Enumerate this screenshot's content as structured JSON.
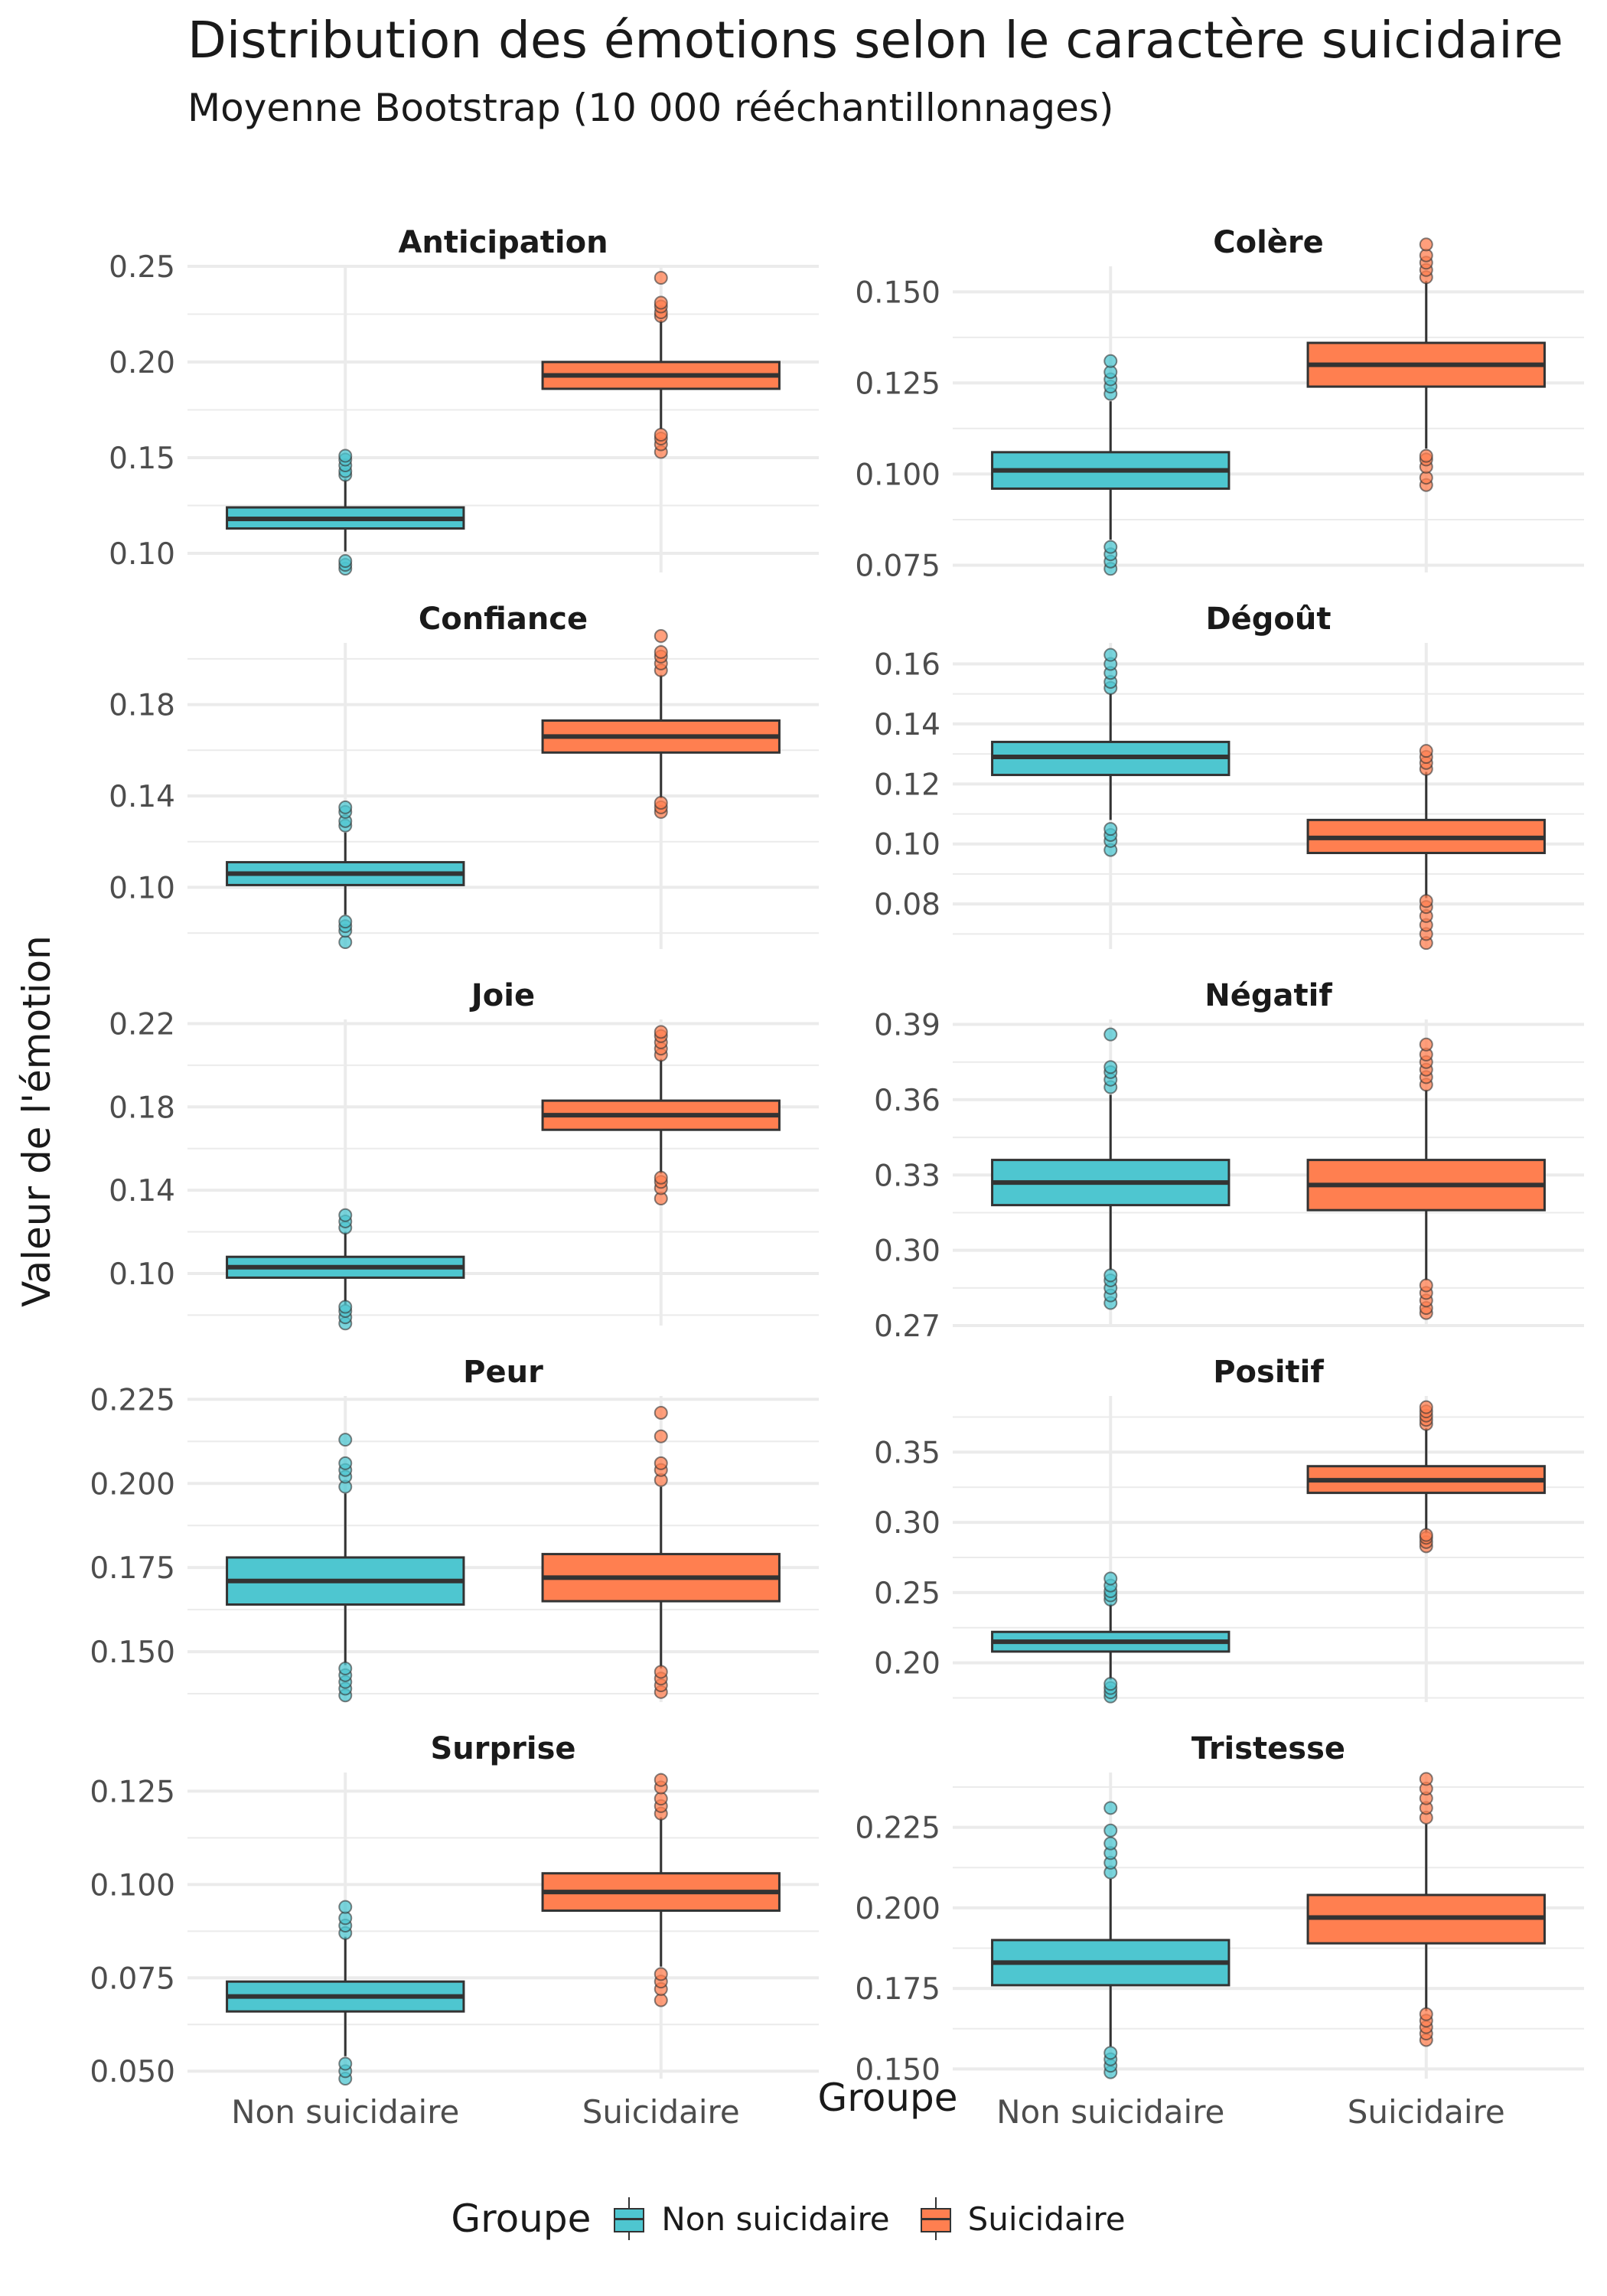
{
  "title": "Distribution des émotions selon le caractère suicidaire",
  "subtitle": "Moyenne Bootstrap (10 000 rééchantillonnages)",
  "ylabel": "Valeur de l'émotion",
  "xlabel": "Groupe",
  "legend": {
    "title": "Groupe",
    "items": [
      {
        "label": "Non suicidaire",
        "color": "#4EC6D0"
      },
      {
        "label": "Suicidaire",
        "color": "#FF7F50"
      }
    ]
  },
  "colors": {
    "non_suicidaire": "#4EC6D0",
    "suicidaire": "#FF7F50",
    "outline": "#333333",
    "grid": "#EBEBEB"
  },
  "chart_data": {
    "type": "box",
    "categories": [
      "Non suicidaire",
      "Suicidaire"
    ],
    "grid": true,
    "legend_position": "bottom",
    "panels": [
      {
        "name": "Anticipation",
        "ylim": [
          0.09,
          0.25
        ],
        "yticks": [
          0.1,
          0.15,
          0.2,
          0.25
        ],
        "tick_labels": [
          "0.10",
          "0.15",
          "0.20",
          "0.25"
        ],
        "boxes": [
          {
            "group": "Non suicidaire",
            "min": 0.101,
            "q1": 0.113,
            "median": 0.118,
            "q3": 0.124,
            "max": 0.139,
            "outliers": [
              0.092,
              0.094,
              0.096,
              0.141,
              0.143,
              0.146,
              0.149,
              0.151
            ]
          },
          {
            "group": "Suicidaire",
            "min": 0.165,
            "q1": 0.186,
            "median": 0.193,
            "q3": 0.2,
            "max": 0.222,
            "outliers": [
              0.153,
              0.157,
              0.16,
              0.162,
              0.224,
              0.226,
              0.229,
              0.231,
              0.244
            ]
          }
        ]
      },
      {
        "name": "Colère",
        "ylim": [
          0.073,
          0.157
        ],
        "yticks": [
          0.075,
          0.1,
          0.125,
          0.15
        ],
        "tick_labels": [
          "0.075",
          "0.100",
          "0.125",
          "0.150"
        ],
        "boxes": [
          {
            "group": "Non suicidaire",
            "min": 0.082,
            "q1": 0.096,
            "median": 0.101,
            "q3": 0.106,
            "max": 0.12,
            "outliers": [
              0.074,
              0.076,
              0.078,
              0.08,
              0.122,
              0.124,
              0.126,
              0.128,
              0.131
            ]
          },
          {
            "group": "Suicidaire",
            "min": 0.107,
            "q1": 0.124,
            "median": 0.13,
            "q3": 0.136,
            "max": 0.153,
            "outliers": [
              0.097,
              0.099,
              0.102,
              0.104,
              0.105,
              0.154,
              0.156,
              0.158,
              0.16,
              0.163
            ]
          }
        ]
      },
      {
        "name": "Confiance",
        "ylim": [
          0.073,
          0.207
        ],
        "yticks": [
          0.1,
          0.14,
          0.18
        ],
        "tick_labels": [
          "0.10",
          "0.14",
          "0.18"
        ],
        "boxes": [
          {
            "group": "Non suicidaire",
            "min": 0.088,
            "q1": 0.101,
            "median": 0.106,
            "q3": 0.111,
            "max": 0.124,
            "outliers": [
              0.076,
              0.081,
              0.083,
              0.085,
              0.127,
              0.129,
              0.133,
              0.135
            ]
          },
          {
            "group": "Suicidaire",
            "min": 0.139,
            "q1": 0.159,
            "median": 0.166,
            "q3": 0.173,
            "max": 0.193,
            "outliers": [
              0.133,
              0.135,
              0.137,
              0.195,
              0.198,
              0.201,
              0.203,
              0.21
            ]
          }
        ]
      },
      {
        "name": "Dégoût",
        "ylim": [
          0.065,
          0.167
        ],
        "yticks": [
          0.08,
          0.1,
          0.12,
          0.14,
          0.16
        ],
        "tick_labels": [
          "0.08",
          "0.10",
          "0.12",
          "0.14",
          "0.16"
        ],
        "boxes": [
          {
            "group": "Non suicidaire",
            "min": 0.108,
            "q1": 0.123,
            "median": 0.129,
            "q3": 0.134,
            "max": 0.15,
            "outliers": [
              0.098,
              0.101,
              0.103,
              0.105,
              0.152,
              0.154,
              0.157,
              0.16,
              0.163
            ]
          },
          {
            "group": "Suicidaire",
            "min": 0.082,
            "q1": 0.097,
            "median": 0.102,
            "q3": 0.108,
            "max": 0.124,
            "outliers": [
              0.067,
              0.07,
              0.073,
              0.076,
              0.079,
              0.081,
              0.125,
              0.127,
              0.129,
              0.131
            ]
          }
        ]
      },
      {
        "name": "Joie",
        "ylim": [
          0.075,
          0.222
        ],
        "yticks": [
          0.1,
          0.14,
          0.18,
          0.22
        ],
        "tick_labels": [
          "0.10",
          "0.14",
          "0.18",
          "0.22"
        ],
        "boxes": [
          {
            "group": "Non suicidaire",
            "min": 0.085,
            "q1": 0.098,
            "median": 0.103,
            "q3": 0.108,
            "max": 0.12,
            "outliers": [
              0.076,
              0.079,
              0.082,
              0.084,
              0.122,
              0.125,
              0.128
            ]
          },
          {
            "group": "Suicidaire",
            "min": 0.148,
            "q1": 0.169,
            "median": 0.176,
            "q3": 0.183,
            "max": 0.203,
            "outliers": [
              0.136,
              0.141,
              0.144,
              0.146,
              0.205,
              0.208,
              0.211,
              0.214,
              0.216
            ]
          }
        ]
      },
      {
        "name": "Négatif",
        "ylim": [
          0.27,
          0.392
        ],
        "yticks": [
          0.27,
          0.3,
          0.33,
          0.36,
          0.39
        ],
        "tick_labels": [
          "0.27",
          "0.30",
          "0.33",
          "0.36",
          "0.39"
        ],
        "boxes": [
          {
            "group": "Non suicidaire",
            "min": 0.292,
            "q1": 0.318,
            "median": 0.327,
            "q3": 0.336,
            "max": 0.362,
            "outliers": [
              0.279,
              0.282,
              0.285,
              0.288,
              0.29,
              0.365,
              0.368,
              0.371,
              0.373,
              0.386
            ]
          },
          {
            "group": "Suicidaire",
            "min": 0.288,
            "q1": 0.316,
            "median": 0.326,
            "q3": 0.336,
            "max": 0.364,
            "outliers": [
              0.275,
              0.277,
              0.28,
              0.283,
              0.286,
              0.366,
              0.369,
              0.372,
              0.375,
              0.378,
              0.382
            ]
          }
        ]
      },
      {
        "name": "Peur",
        "ylim": [
          0.135,
          0.226
        ],
        "yticks": [
          0.15,
          0.175,
          0.2,
          0.225
        ],
        "tick_labels": [
          "0.150",
          "0.175",
          "0.200",
          "0.225"
        ],
        "boxes": [
          {
            "group": "Non suicidaire",
            "min": 0.146,
            "q1": 0.164,
            "median": 0.171,
            "q3": 0.178,
            "max": 0.197,
            "outliers": [
              0.137,
              0.139,
              0.141,
              0.143,
              0.145,
              0.199,
              0.202,
              0.204,
              0.206,
              0.213
            ]
          },
          {
            "group": "Suicidaire",
            "min": 0.145,
            "q1": 0.165,
            "median": 0.172,
            "q3": 0.179,
            "max": 0.199,
            "outliers": [
              0.138,
              0.14,
              0.142,
              0.144,
              0.201,
              0.204,
              0.206,
              0.214,
              0.221
            ]
          }
        ]
      },
      {
        "name": "Positif",
        "ylim": [
          0.172,
          0.39
        ],
        "yticks": [
          0.2,
          0.25,
          0.3,
          0.35
        ],
        "tick_labels": [
          "0.20",
          "0.25",
          "0.30",
          "0.35"
        ],
        "boxes": [
          {
            "group": "Non suicidaire",
            "min": 0.188,
            "q1": 0.208,
            "median": 0.215,
            "q3": 0.222,
            "max": 0.242,
            "outliers": [
              0.176,
              0.179,
              0.182,
              0.185,
              0.245,
              0.248,
              0.251,
              0.255,
              0.26
            ]
          },
          {
            "group": "Suicidaire",
            "min": 0.292,
            "q1": 0.321,
            "median": 0.33,
            "q3": 0.34,
            "max": 0.367,
            "outliers": [
              0.283,
              0.286,
              0.289,
              0.291,
              0.37,
              0.373,
              0.376,
              0.379,
              0.382
            ]
          }
        ]
      },
      {
        "name": "Surprise",
        "ylim": [
          0.048,
          0.13
        ],
        "yticks": [
          0.05,
          0.075,
          0.1,
          0.125
        ],
        "tick_labels": [
          "0.050",
          "0.075",
          "0.100",
          "0.125"
        ],
        "boxes": [
          {
            "group": "Non suicidaire",
            "min": 0.054,
            "q1": 0.066,
            "median": 0.07,
            "q3": 0.074,
            "max": 0.086,
            "outliers": [
              0.048,
              0.05,
              0.052,
              0.087,
              0.089,
              0.091,
              0.094
            ]
          },
          {
            "group": "Suicidaire",
            "min": 0.078,
            "q1": 0.093,
            "median": 0.098,
            "q3": 0.103,
            "max": 0.118,
            "outliers": [
              0.069,
              0.072,
              0.074,
              0.076,
              0.119,
              0.121,
              0.123,
              0.126,
              0.128
            ]
          }
        ]
      },
      {
        "name": "Tristesse",
        "ylim": [
          0.147,
          0.242
        ],
        "yticks": [
          0.15,
          0.175,
          0.2,
          0.225
        ],
        "tick_labels": [
          "0.150",
          "0.175",
          "0.200",
          "0.225"
        ],
        "boxes": [
          {
            "group": "Non suicidaire",
            "min": 0.157,
            "q1": 0.176,
            "median": 0.183,
            "q3": 0.19,
            "max": 0.209,
            "outliers": [
              0.149,
              0.151,
              0.153,
              0.155,
              0.211,
              0.214,
              0.217,
              0.22,
              0.224,
              0.231
            ]
          },
          {
            "group": "Suicidaire",
            "min": 0.168,
            "q1": 0.189,
            "median": 0.197,
            "q3": 0.204,
            "max": 0.226,
            "outliers": [
              0.159,
              0.161,
              0.163,
              0.165,
              0.167,
              0.228,
              0.231,
              0.234,
              0.237,
              0.24
            ]
          }
        ]
      }
    ]
  }
}
